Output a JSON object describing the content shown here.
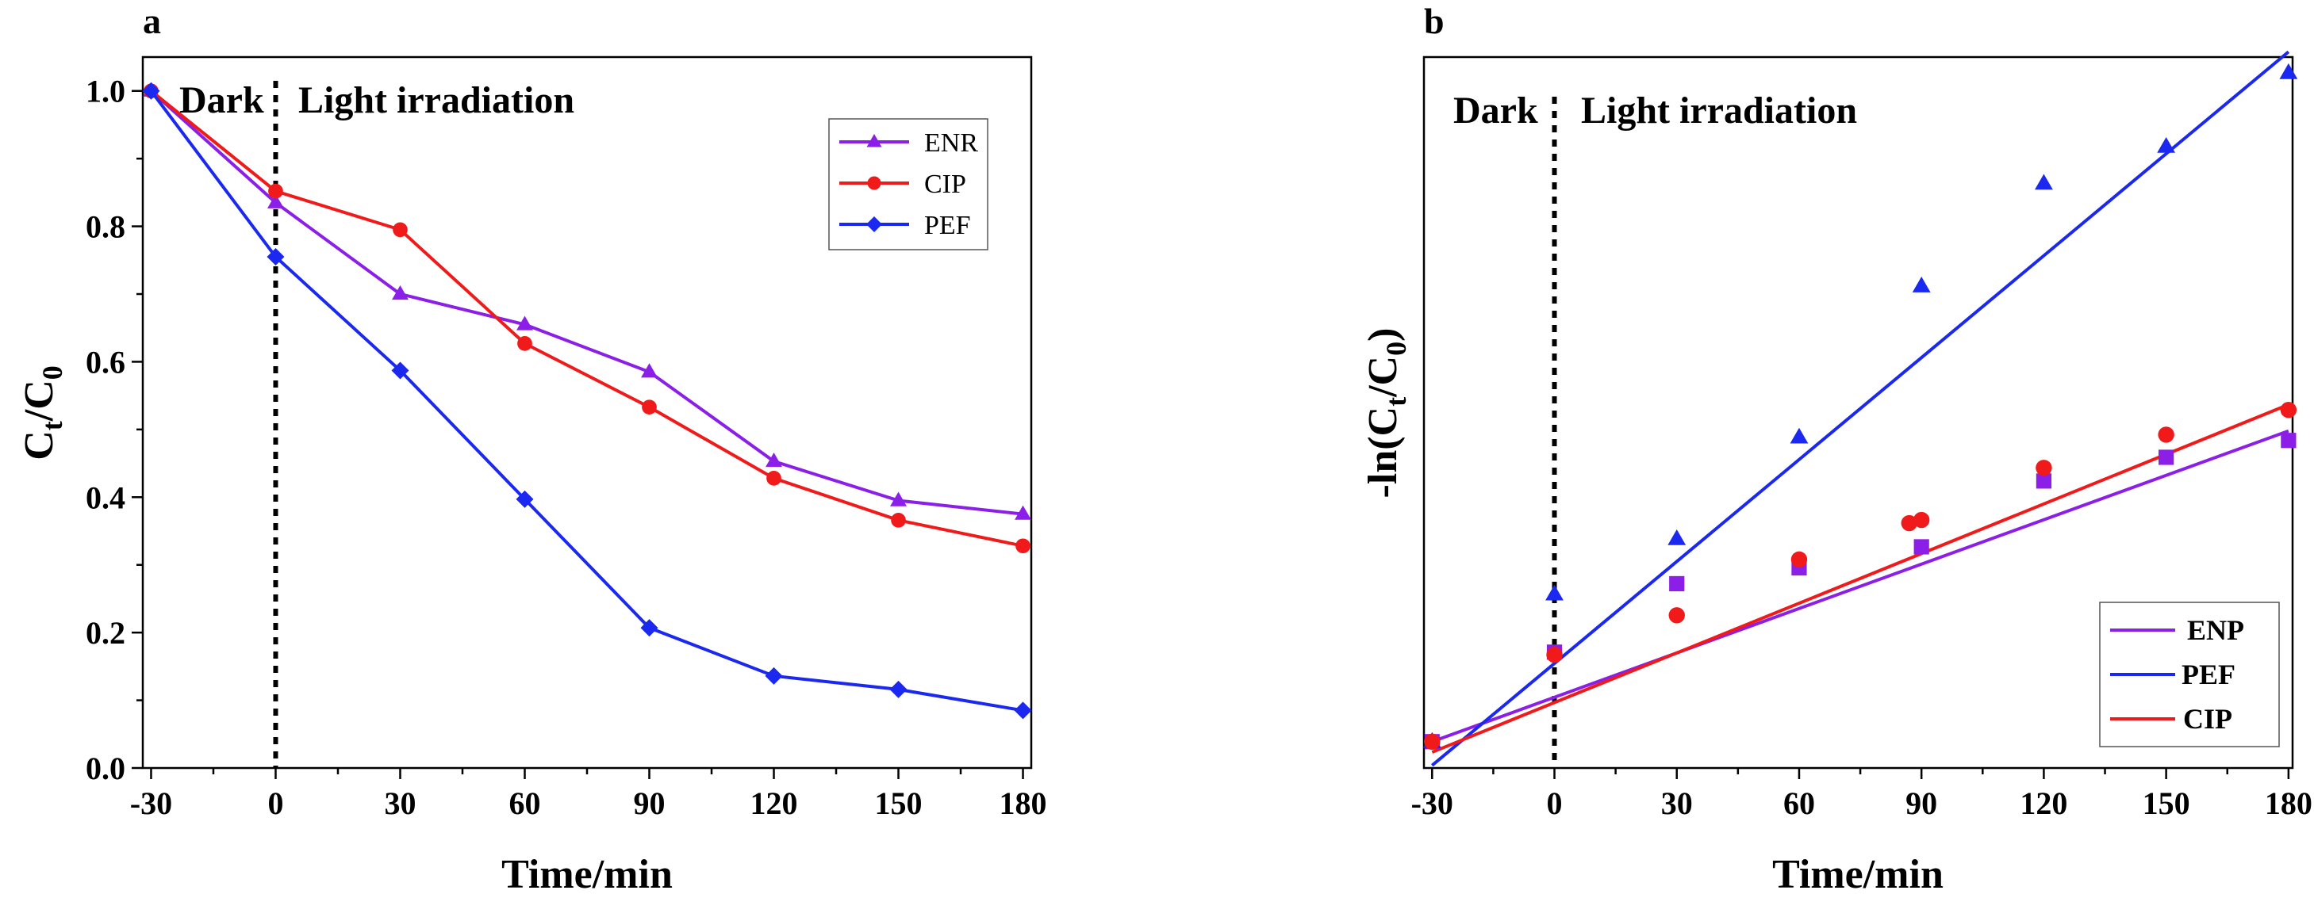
{
  "chart_data": [
    {
      "id": "a",
      "panel_label": "a",
      "type": "line",
      "xlabel": "Time/min",
      "ylabel": "C_t/C_0",
      "xlim": [
        -32,
        182
      ],
      "ylim": [
        0.0,
        1.05
      ],
      "xticks": [
        -30,
        0,
        30,
        60,
        90,
        120,
        150,
        180
      ],
      "xtick_labels": [
        "-30",
        "0",
        "30",
        "60",
        "90",
        "120",
        "150",
        "180"
      ],
      "yticks": [
        0.0,
        0.2,
        0.4,
        0.6,
        0.8,
        1.0
      ],
      "ytick_labels": [
        "0.0",
        "0.2",
        "0.4",
        "0.6",
        "0.8",
        "1.0"
      ],
      "annotations": {
        "dark": "Dark",
        "light": "Light irradiation"
      },
      "legend_position": "top-right",
      "x": [
        -30,
        0,
        30,
        60,
        90,
        120,
        150,
        180
      ],
      "series": [
        {
          "name": "ENR",
          "color": "#8B1FE8",
          "marker": "triangle",
          "values": [
            1.0,
            0.835,
            0.7,
            0.655,
            0.585,
            0.453,
            0.395,
            0.375
          ]
        },
        {
          "name": "CIP",
          "color": "#F01A1A",
          "marker": "circle",
          "values": [
            1.0,
            0.852,
            0.795,
            0.627,
            0.533,
            0.428,
            0.366,
            0.328
          ]
        },
        {
          "name": "PEF",
          "color": "#1A28F0",
          "marker": "diamond",
          "values": [
            1.0,
            0.755,
            0.587,
            0.397,
            0.207,
            0.136,
            0.116,
            0.085
          ]
        }
      ]
    },
    {
      "id": "b",
      "panel_label": "b",
      "type": "scatter",
      "xlabel": "Time/min",
      "ylabel": "-ln(C_t/C_0)",
      "xlim": [
        -32,
        181
      ],
      "ylim": [
        -0.05,
        1.3
      ],
      "xticks": [
        -30,
        0,
        30,
        60,
        90,
        120,
        150,
        180
      ],
      "xtick_labels": [
        "-30",
        "0",
        "30",
        "60",
        "90",
        "120",
        "150",
        "180"
      ],
      "annotations": {
        "dark": "Dark",
        "light": "Light irradiation"
      },
      "legend_position": "bottom-right",
      "series": [
        {
          "name": "ENP",
          "color": "#8B1FE8",
          "marker": "square",
          "x": [
            -30,
            0,
            30,
            60,
            90,
            120,
            150,
            180
          ],
          "values": [
            0.0,
            0.17,
            0.3,
            0.33,
            0.37,
            0.495,
            0.54,
            0.572
          ],
          "fit": {
            "x": [
              -30,
              180
            ],
            "y": [
              0.0,
              0.59
            ]
          }
        },
        {
          "name": "PEF",
          "color": "#1A28F0",
          "marker": "triangle",
          "x": [
            -30,
            0,
            30,
            60,
            90,
            120,
            150,
            180
          ],
          "values": [
            0.0,
            0.28,
            0.385,
            0.578,
            0.865,
            1.06,
            1.13,
            1.27
          ],
          "fit": {
            "x": [
              -30,
              180
            ],
            "y": [
              -0.045,
              1.31
            ]
          }
        },
        {
          "name": "CIP",
          "color": "#F01A1A",
          "marker": "circle",
          "x": [
            -30,
            0,
            30,
            60,
            87,
            90,
            120,
            150,
            180
          ],
          "values": [
            0.0,
            0.165,
            0.24,
            0.346,
            0.415,
            0.421,
            0.52,
            0.583,
            0.63
          ],
          "fit": {
            "x": [
              -30,
              180
            ],
            "y": [
              -0.02,
              0.64
            ]
          }
        }
      ]
    }
  ]
}
